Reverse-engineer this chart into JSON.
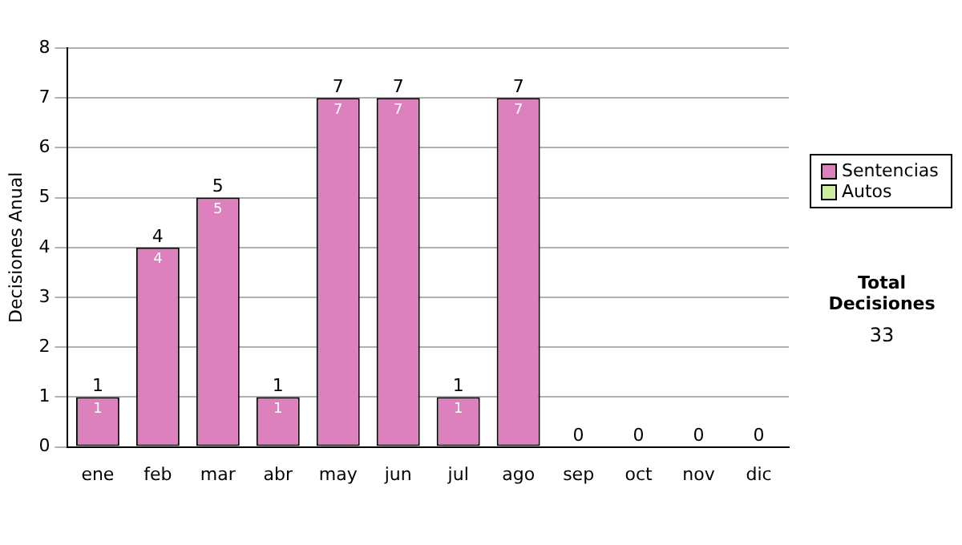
{
  "chart_data": {
    "type": "bar",
    "stacked": true,
    "ylabel": "Decisiones Anual",
    "categories": [
      "ene",
      "feb",
      "mar",
      "abr",
      "may",
      "jun",
      "jul",
      "ago",
      "sep",
      "oct",
      "nov",
      "dic"
    ],
    "series": [
      {
        "name": "Sentencias",
        "color": "#dc80be",
        "values": [
          1,
          4,
          5,
          1,
          7,
          7,
          1,
          7,
          0,
          0,
          0,
          0
        ],
        "value_labels": [
          "1",
          "4",
          "5",
          "1",
          "7",
          "7",
          "1",
          "7",
          null,
          null,
          null,
          null
        ]
      },
      {
        "name": "Autos",
        "color": "#cceea0",
        "values": [
          0,
          0,
          0,
          0,
          0,
          0,
          0,
          0,
          0,
          0,
          0,
          0
        ]
      }
    ],
    "totals": [
      "1",
      "4",
      "5",
      "1",
      "7",
      "7",
      "1",
      "7",
      "0",
      "0",
      "0",
      "0"
    ],
    "ylim": [
      0,
      8
    ],
    "yticks": [
      0,
      1,
      2,
      3,
      4,
      5,
      6,
      7,
      8
    ],
    "grid": "y",
    "legend": "right",
    "annotations": [
      "Total Decisiones",
      "33"
    ]
  }
}
